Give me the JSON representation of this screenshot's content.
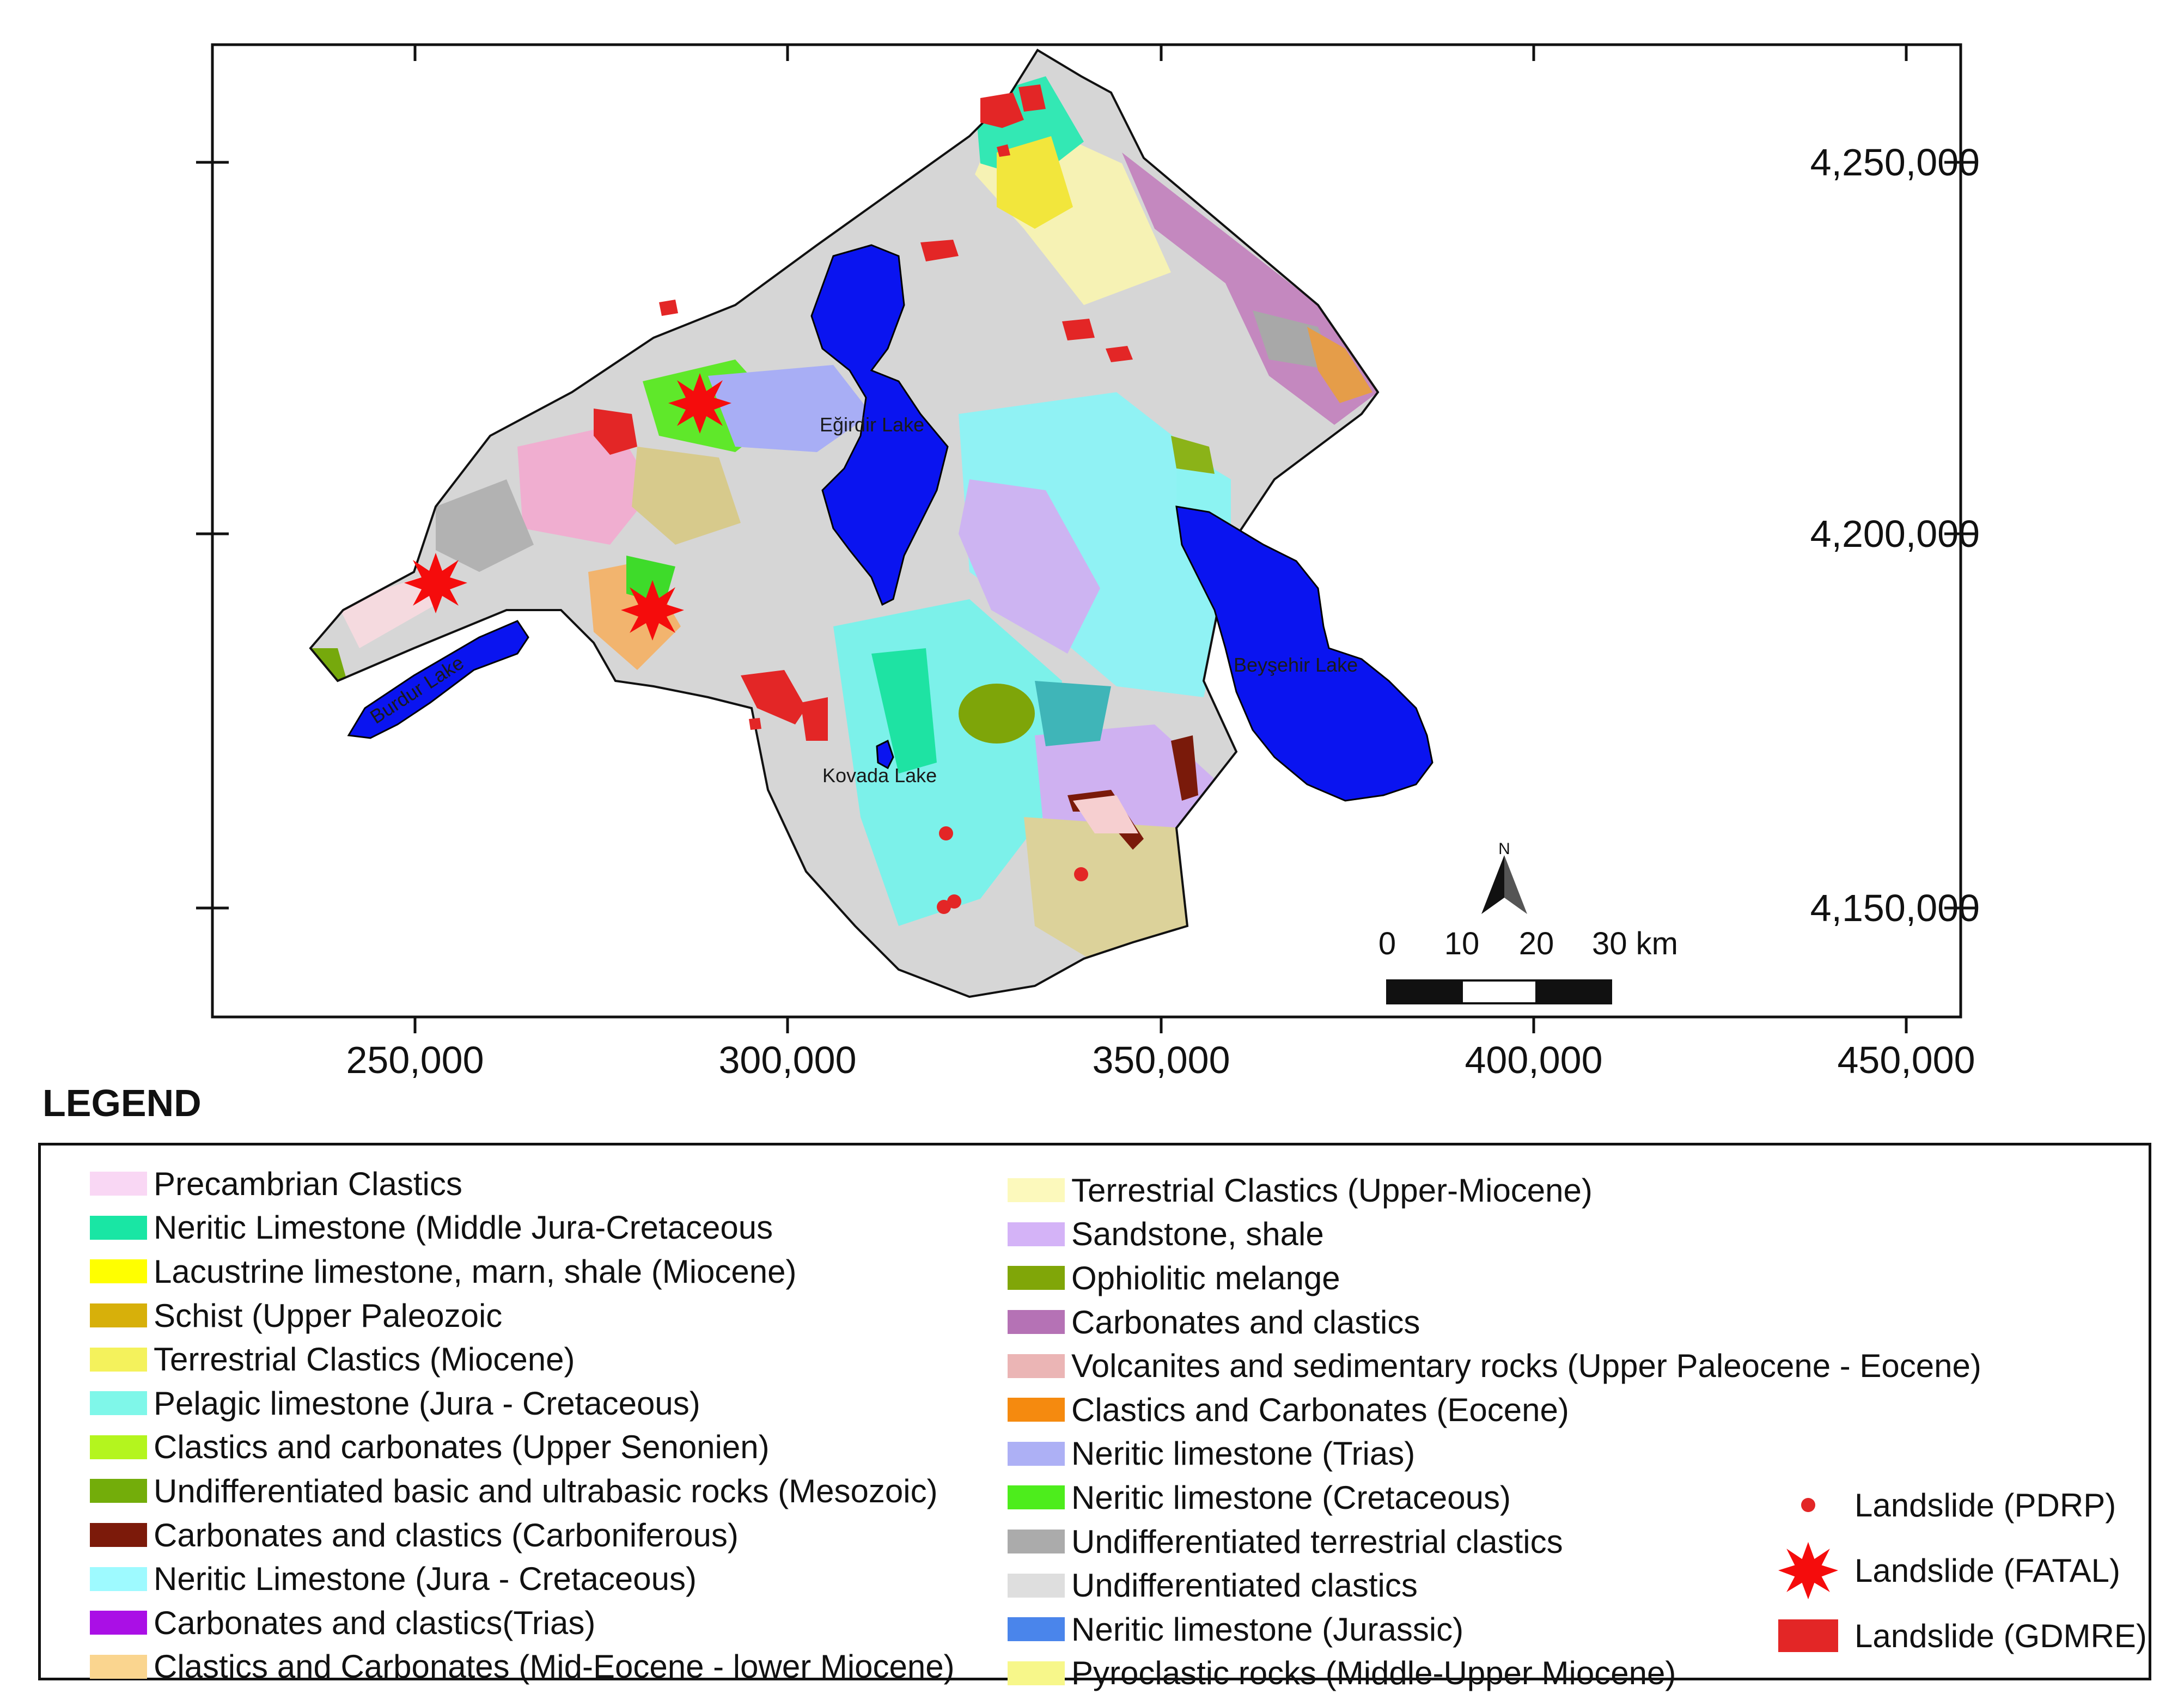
{
  "map": {
    "x_ticks": [
      "250,000",
      "300,000",
      "350,000",
      "400,000",
      "450,000"
    ],
    "y_ticks": [
      "4,250,000",
      "4,200,000",
      "4,150,000"
    ],
    "lakes": [
      {
        "name": "Eğirdir Lake"
      },
      {
        "name": "Burdur Lake"
      },
      {
        "name": "Beyşehir Lake"
      },
      {
        "name": "Kovada Lake"
      }
    ],
    "north_arrow": "N",
    "scale_bar": {
      "labels": [
        "0",
        "10",
        "20"
      ],
      "last_label": "30 km"
    }
  },
  "legend": {
    "title": "LEGEND",
    "column1": [
      {
        "label": "Precambrian Clastics",
        "color": "#f9d7f4"
      },
      {
        "label": "Neritic Limestone (Middle Jura-Cretaceous",
        "color": "#19e6a4"
      },
      {
        "label": "Lacustrine limestone, marn, shale (Miocene)",
        "color": "#ffff00"
      },
      {
        "label": "Schist (Upper Paleozoic",
        "color": "#d7b00a"
      },
      {
        "label": "Terrestrial Clastics (Miocene)",
        "color": "#f4f25c"
      },
      {
        "label": "Pelagic limestone (Jura - Cretaceous)",
        "color": "#7ff7e9"
      },
      {
        "label": "Clastics and carbonates (Upper  Senonien)",
        "color": "#b4f51e"
      },
      {
        "label": "Undifferentiated basic and ultrabasic rocks (Mesozoic)",
        "color": "#73ad0a"
      },
      {
        "label": "Carbonates and clastics (Carboniferous)",
        "color": "#7c1a0a"
      },
      {
        "label": "Neritic Limestone (Jura - Cretaceous)",
        "color": "#9efaff"
      },
      {
        "label": "Carbonates and clastics(Trias)",
        "color": "#aa0fe6"
      },
      {
        "label": "Clastics and Carbonates (Mid-Eocene - lower Miocene)",
        "color": "#fad58f"
      }
    ],
    "column2": [
      {
        "label": "Terrestrial Clastics (Upper-Miocene)",
        "color": "#fcf9bc"
      },
      {
        "label": "Sandstone, shale",
        "color": "#d4b3f7"
      },
      {
        "label": "Ophiolitic melange",
        "color": "#80a608"
      },
      {
        "label": "Carbonates and clastics",
        "color": "#b572b5"
      },
      {
        "label": "Volcanites and sedimentary rocks (Upper Paleocene - Eocene)",
        "color": "#ebb5b5"
      },
      {
        "label": "Clastics and Carbonates (Eocene)",
        "color": "#f58a0f"
      },
      {
        "label": "Neritic limestone (Trias)",
        "color": "#adb0f5"
      },
      {
        "label": "Neritic limestone (Cretaceous)",
        "color": "#4ded1c"
      },
      {
        "label": "Undifferentiated terrestrial clastics",
        "color": "#ababab"
      },
      {
        "label": "Undifferentiated clastics",
        "color": "#dedede"
      },
      {
        "label": "Neritic limestone (Jurassic)",
        "color": "#4a85eb"
      },
      {
        "label": "Pyroclastic rocks (Middle-Upper Miocene)",
        "color": "#f7f78a"
      }
    ],
    "symbols": [
      {
        "label": "Landslide (PDRP)",
        "color": "#e32626"
      },
      {
        "label": "Landslide (FATAL)",
        "color": "#f50c0c"
      },
      {
        "label": "Landslide (GDMRE)",
        "color": "#e32626"
      }
    ]
  }
}
